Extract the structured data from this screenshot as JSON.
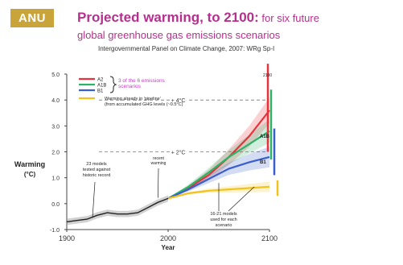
{
  "logo": "ANU",
  "title": {
    "main": "Projected warming, to 2100:",
    "rest": " for six future",
    "line2": "global greenhouse gas emissions scenarios"
  },
  "source": "Intergovernmental Panel on Climate Change, 2007: WRg Sp-I",
  "colors": {
    "A2": "#e8323c",
    "A1B": "#2db368",
    "B1": "#3a5fcd",
    "commitment": "#f2c21d",
    "observed": "#222222",
    "brace_text": "#c837c8"
  },
  "chart_data": {
    "type": "line",
    "xlabel": "Year",
    "ylabel": "Warming (°C)",
    "xlim": [
      1900,
      2100
    ],
    "ylim": [
      -1.0,
      5.0
    ],
    "x_ticks": [
      "1900",
      "2000",
      "2100"
    ],
    "y_ticks": [
      "-1.0",
      "0.0",
      "1.0",
      "2.0",
      "3.0",
      "4.0",
      "5.0"
    ],
    "reference_lines": [
      {
        "y": 4.0,
        "label": "+ 4°C"
      },
      {
        "y": 2.0,
        "label": "+ 2°C"
      }
    ],
    "series": [
      {
        "name": "A2",
        "color_key": "A2",
        "x": [
          2000,
          2020,
          2040,
          2060,
          2080,
          2100
        ],
        "y": [
          0.2,
          0.6,
          1.1,
          1.8,
          2.6,
          3.6
        ]
      },
      {
        "name": "A1B",
        "color_key": "A1B",
        "x": [
          2000,
          2020,
          2040,
          2060,
          2080,
          2100
        ],
        "y": [
          0.2,
          0.65,
          1.2,
          1.8,
          2.3,
          2.8
        ]
      },
      {
        "name": "B1",
        "color_key": "B1",
        "x": [
          2000,
          2020,
          2040,
          2060,
          2080,
          2100
        ],
        "y": [
          0.2,
          0.55,
          0.95,
          1.35,
          1.6,
          1.8
        ]
      },
      {
        "name": "Warming already in 'pipeline' (from accumulated GHG levels (~0.5°C))",
        "color_key": "commitment",
        "x": [
          2000,
          2020,
          2040,
          2060,
          2080,
          2100
        ],
        "y": [
          0.2,
          0.4,
          0.5,
          0.55,
          0.6,
          0.65
        ]
      },
      {
        "name": "observed",
        "color_key": "observed",
        "x": [
          1900,
          1910,
          1920,
          1930,
          1940,
          1950,
          1960,
          1970,
          1980,
          1990,
          2000
        ],
        "y": [
          -0.7,
          -0.65,
          -0.6,
          -0.45,
          -0.35,
          -0.4,
          -0.4,
          -0.35,
          -0.15,
          0.05,
          0.2
        ]
      }
    ],
    "legend": {
      "entries": [
        "A2",
        "A1B",
        "B1"
      ],
      "commitment_label": "Warming already in 'pipeline' (from accumulated GHG levels (~0.5°C)",
      "brace_label_line1": "3 of the 6 emissions",
      "brace_label_line2": "scenarios"
    },
    "annotations": {
      "models_20th": [
        "23 models",
        "tested against",
        "historic record"
      ],
      "recent_warming": [
        "recent",
        "warming"
      ],
      "models_21st": [
        "16-21 models",
        "used for each",
        "scenario"
      ],
      "bar_label_top": "2100",
      "bar_label_A1B": "A1B",
      "bar_label_B1": "B1"
    }
  }
}
